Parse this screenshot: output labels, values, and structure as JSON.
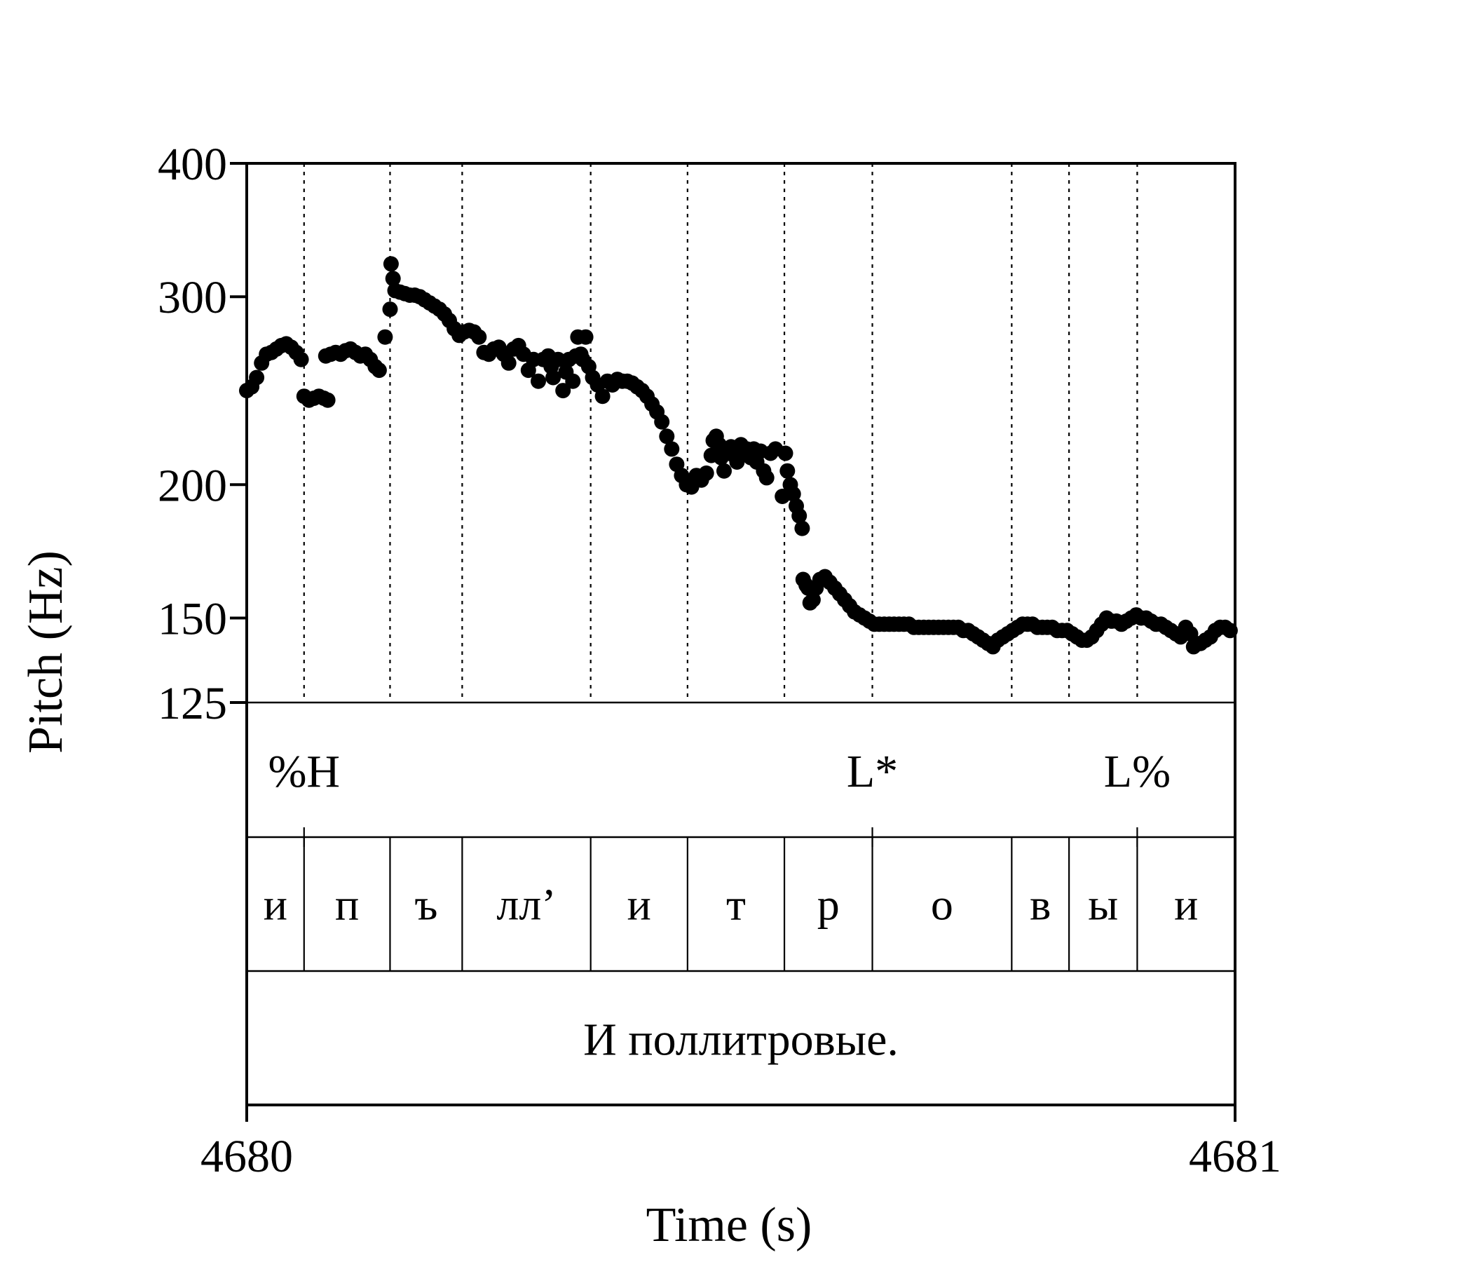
{
  "chart_data": {
    "type": "scatter",
    "xlabel": "Time (s)",
    "ylabel": "Pitch (Hz)",
    "xlim": [
      4680,
      4681
    ],
    "ylim": [
      125,
      400
    ],
    "yscale": "log",
    "grid": false,
    "x_ticks": [
      "4680",
      "4681"
    ],
    "y_ticks": [
      {
        "value": 400,
        "label": "400"
      },
      {
        "value": 300,
        "label": "300"
      },
      {
        "value": 200,
        "label": "200"
      },
      {
        "value": 150,
        "label": "150"
      },
      {
        "value": 125,
        "label": "125"
      }
    ],
    "boundaries": [
      4680.058,
      4680.145,
      4680.218,
      4680.348,
      4680.446,
      4680.544,
      4680.633,
      4680.774,
      4680.832,
      4680.901
    ],
    "tones": [
      {
        "label": "%H",
        "time": 4680.058
      },
      {
        "label": "L*",
        "time": 4680.633
      },
      {
        "label": "L%",
        "time": 4680.901
      }
    ],
    "tone_boundaries": [
      4680.058,
      4680.633,
      4680.901
    ],
    "segments": [
      {
        "label": "и",
        "start": 4680.0,
        "end": 4680.058
      },
      {
        "label": "п",
        "start": 4680.058,
        "end": 4680.145
      },
      {
        "label": "ъ",
        "start": 4680.145,
        "end": 4680.218
      },
      {
        "label": "лл’",
        "start": 4680.218,
        "end": 4680.348
      },
      {
        "label": "и",
        "start": 4680.348,
        "end": 4680.446
      },
      {
        "label": "т",
        "start": 4680.446,
        "end": 4680.544
      },
      {
        "label": "р",
        "start": 4680.544,
        "end": 4680.633
      },
      {
        "label": "о",
        "start": 4680.633,
        "end": 4680.774
      },
      {
        "label": "в",
        "start": 4680.774,
        "end": 4680.832
      },
      {
        "label": "ы",
        "start": 4680.832,
        "end": 4680.901
      },
      {
        "label": "и",
        "start": 4680.901,
        "end": 4681.0
      }
    ],
    "sentence": "И поллитровые.",
    "series": [
      {
        "values": [
          [
            4680.0,
            245
          ],
          [
            4680.005,
            247
          ],
          [
            4680.01,
            252
          ],
          [
            4680.015,
            260
          ],
          [
            4680.02,
            265
          ],
          [
            4680.025,
            266
          ],
          [
            4680.03,
            268
          ],
          [
            4680.035,
            270
          ],
          [
            4680.04,
            271
          ],
          [
            4680.045,
            269
          ],
          [
            4680.05,
            266
          ],
          [
            4680.055,
            262
          ],
          [
            4680.058,
            242
          ],
          [
            4680.063,
            240
          ],
          [
            4680.068,
            241
          ],
          [
            4680.073,
            242
          ],
          [
            4680.078,
            241
          ],
          [
            4680.082,
            240
          ],
          [
            4680.08,
            264
          ],
          [
            4680.085,
            265
          ],
          [
            4680.09,
            266
          ],
          [
            4680.095,
            265
          ],
          [
            4680.1,
            267
          ],
          [
            4680.105,
            268
          ],
          [
            4680.11,
            266
          ],
          [
            4680.115,
            264
          ],
          [
            4680.12,
            265
          ],
          [
            4680.125,
            262
          ],
          [
            4680.13,
            258
          ],
          [
            4680.134,
            256
          ],
          [
            4680.14,
            275
          ],
          [
            4680.145,
            292
          ],
          [
            4680.146,
            322
          ],
          [
            4680.148,
            312
          ],
          [
            4680.15,
            304
          ],
          [
            4680.155,
            303
          ],
          [
            4680.16,
            302
          ],
          [
            4680.165,
            301
          ],
          [
            4680.17,
            301
          ],
          [
            4680.175,
            300
          ],
          [
            4680.18,
            298
          ],
          [
            4680.185,
            296
          ],
          [
            4680.19,
            294
          ],
          [
            4680.195,
            292
          ],
          [
            4680.2,
            289
          ],
          [
            4680.205,
            285
          ],
          [
            4680.21,
            280
          ],
          [
            4680.215,
            276
          ],
          [
            4680.22,
            278
          ],
          [
            4680.225,
            279
          ],
          [
            4680.23,
            278
          ],
          [
            4680.235,
            275
          ],
          [
            4680.24,
            266
          ],
          [
            4680.245,
            265
          ],
          [
            4680.25,
            268
          ],
          [
            4680.255,
            269
          ],
          [
            4680.26,
            265
          ],
          [
            4680.265,
            260
          ],
          [
            4680.27,
            268
          ],
          [
            4680.275,
            270
          ],
          [
            4680.28,
            265
          ],
          [
            4680.285,
            256
          ],
          [
            4680.29,
            262
          ],
          [
            4680.295,
            250
          ],
          [
            4680.3,
            262
          ],
          [
            4680.305,
            264
          ],
          [
            4680.308,
            258
          ],
          [
            4680.31,
            252
          ],
          [
            4680.315,
            262
          ],
          [
            4680.32,
            245
          ],
          [
            4680.323,
            255
          ],
          [
            4680.326,
            262
          ],
          [
            4680.33,
            250
          ],
          [
            4680.333,
            264
          ],
          [
            4680.335,
            275
          ],
          [
            4680.338,
            265
          ],
          [
            4680.34,
            262
          ],
          [
            4680.343,
            275
          ],
          [
            4680.346,
            258
          ],
          [
            4680.35,
            252
          ],
          [
            4680.355,
            248
          ],
          [
            4680.36,
            242
          ],
          [
            4680.365,
            250
          ],
          [
            4680.37,
            248
          ],
          [
            4680.375,
            251
          ],
          [
            4680.38,
            250
          ],
          [
            4680.385,
            250
          ],
          [
            4680.39,
            249
          ],
          [
            4680.395,
            247
          ],
          [
            4680.4,
            245
          ],
          [
            4680.405,
            242
          ],
          [
            4680.41,
            238
          ],
          [
            4680.415,
            234
          ],
          [
            4680.42,
            229
          ],
          [
            4680.425,
            222
          ],
          [
            4680.43,
            216
          ],
          [
            4680.435,
            209
          ],
          [
            4680.44,
            204
          ],
          [
            4680.445,
            200
          ],
          [
            4680.45,
            199
          ],
          [
            4680.455,
            204
          ],
          [
            4680.46,
            202
          ],
          [
            4680.465,
            205
          ],
          [
            4680.47,
            213
          ],
          [
            4680.472,
            220
          ],
          [
            4680.475,
            222
          ],
          [
            4680.478,
            218
          ],
          [
            4680.48,
            212
          ],
          [
            4680.483,
            206
          ],
          [
            4680.486,
            214
          ],
          [
            4680.49,
            217
          ],
          [
            4680.493,
            213
          ],
          [
            4680.496,
            210
          ],
          [
            4680.5,
            218
          ],
          [
            4680.503,
            214
          ],
          [
            4680.506,
            216
          ],
          [
            4680.51,
            212
          ],
          [
            4680.513,
            216
          ],
          [
            4680.516,
            210
          ],
          [
            4680.52,
            215
          ],
          [
            4680.523,
            206
          ],
          [
            4680.526,
            203
          ],
          [
            4680.53,
            214
          ],
          [
            4680.535,
            216
          ],
          [
            4680.542,
            195
          ],
          [
            4680.545,
            214
          ],
          [
            4680.547,
            206
          ],
          [
            4680.55,
            200
          ],
          [
            4680.553,
            196
          ],
          [
            4680.556,
            191
          ],
          [
            4680.559,
            187
          ],
          [
            4680.562,
            182
          ],
          [
            4680.563,
            163
          ],
          [
            4680.566,
            161
          ],
          [
            4680.568,
            160
          ],
          [
            4680.57,
            155
          ],
          [
            4680.573,
            156
          ],
          [
            4680.576,
            160
          ],
          [
            4680.58,
            163
          ],
          [
            4680.585,
            164
          ],
          [
            4680.59,
            162
          ],
          [
            4680.595,
            160
          ],
          [
            4680.6,
            158
          ],
          [
            4680.605,
            156
          ],
          [
            4680.61,
            154
          ],
          [
            4680.615,
            152
          ],
          [
            4680.62,
            151
          ],
          [
            4680.625,
            150
          ],
          [
            4680.63,
            149
          ],
          [
            4680.635,
            148
          ],
          [
            4680.64,
            148
          ],
          [
            4680.645,
            148
          ],
          [
            4680.65,
            148
          ],
          [
            4680.655,
            148
          ],
          [
            4680.66,
            148
          ],
          [
            4680.665,
            148
          ],
          [
            4680.67,
            148
          ],
          [
            4680.675,
            147
          ],
          [
            4680.68,
            147
          ],
          [
            4680.685,
            147
          ],
          [
            4680.69,
            147
          ],
          [
            4680.695,
            147
          ],
          [
            4680.7,
            147
          ],
          [
            4680.705,
            147
          ],
          [
            4680.71,
            147
          ],
          [
            4680.715,
            147
          ],
          [
            4680.72,
            147
          ],
          [
            4680.725,
            146
          ],
          [
            4680.73,
            146
          ],
          [
            4680.735,
            145
          ],
          [
            4680.74,
            144
          ],
          [
            4680.745,
            143
          ],
          [
            4680.75,
            142
          ],
          [
            4680.755,
            141
          ],
          [
            4680.76,
            143
          ],
          [
            4680.765,
            144
          ],
          [
            4680.77,
            145
          ],
          [
            4680.775,
            146
          ],
          [
            4680.78,
            147
          ],
          [
            4680.785,
            148
          ],
          [
            4680.79,
            148
          ],
          [
            4680.795,
            148
          ],
          [
            4680.8,
            147
          ],
          [
            4680.805,
            147
          ],
          [
            4680.81,
            147
          ],
          [
            4680.815,
            147
          ],
          [
            4680.82,
            146
          ],
          [
            4680.825,
            146
          ],
          [
            4680.83,
            146
          ],
          [
            4680.835,
            145
          ],
          [
            4680.84,
            144
          ],
          [
            4680.845,
            143
          ],
          [
            4680.85,
            143
          ],
          [
            4680.855,
            144
          ],
          [
            4680.86,
            146
          ],
          [
            4680.865,
            148
          ],
          [
            4680.87,
            150
          ],
          [
            4680.875,
            149
          ],
          [
            4680.88,
            149
          ],
          [
            4680.885,
            148
          ],
          [
            4680.89,
            149
          ],
          [
            4680.895,
            150
          ],
          [
            4680.9,
            151
          ],
          [
            4680.905,
            150
          ],
          [
            4680.91,
            150
          ],
          [
            4680.915,
            149
          ],
          [
            4680.92,
            148
          ],
          [
            4680.925,
            148
          ],
          [
            4680.93,
            147
          ],
          [
            4680.935,
            146
          ],
          [
            4680.94,
            145
          ],
          [
            4680.945,
            144
          ],
          [
            4680.95,
            147
          ],
          [
            4680.955,
            145
          ],
          [
            4680.958,
            141
          ],
          [
            4680.96,
            142
          ],
          [
            4680.965,
            142
          ],
          [
            4680.97,
            143
          ],
          [
            4680.975,
            144
          ],
          [
            4680.98,
            146
          ],
          [
            4680.985,
            147
          ],
          [
            4680.99,
            147
          ],
          [
            4680.995,
            146
          ]
        ]
      }
    ]
  }
}
